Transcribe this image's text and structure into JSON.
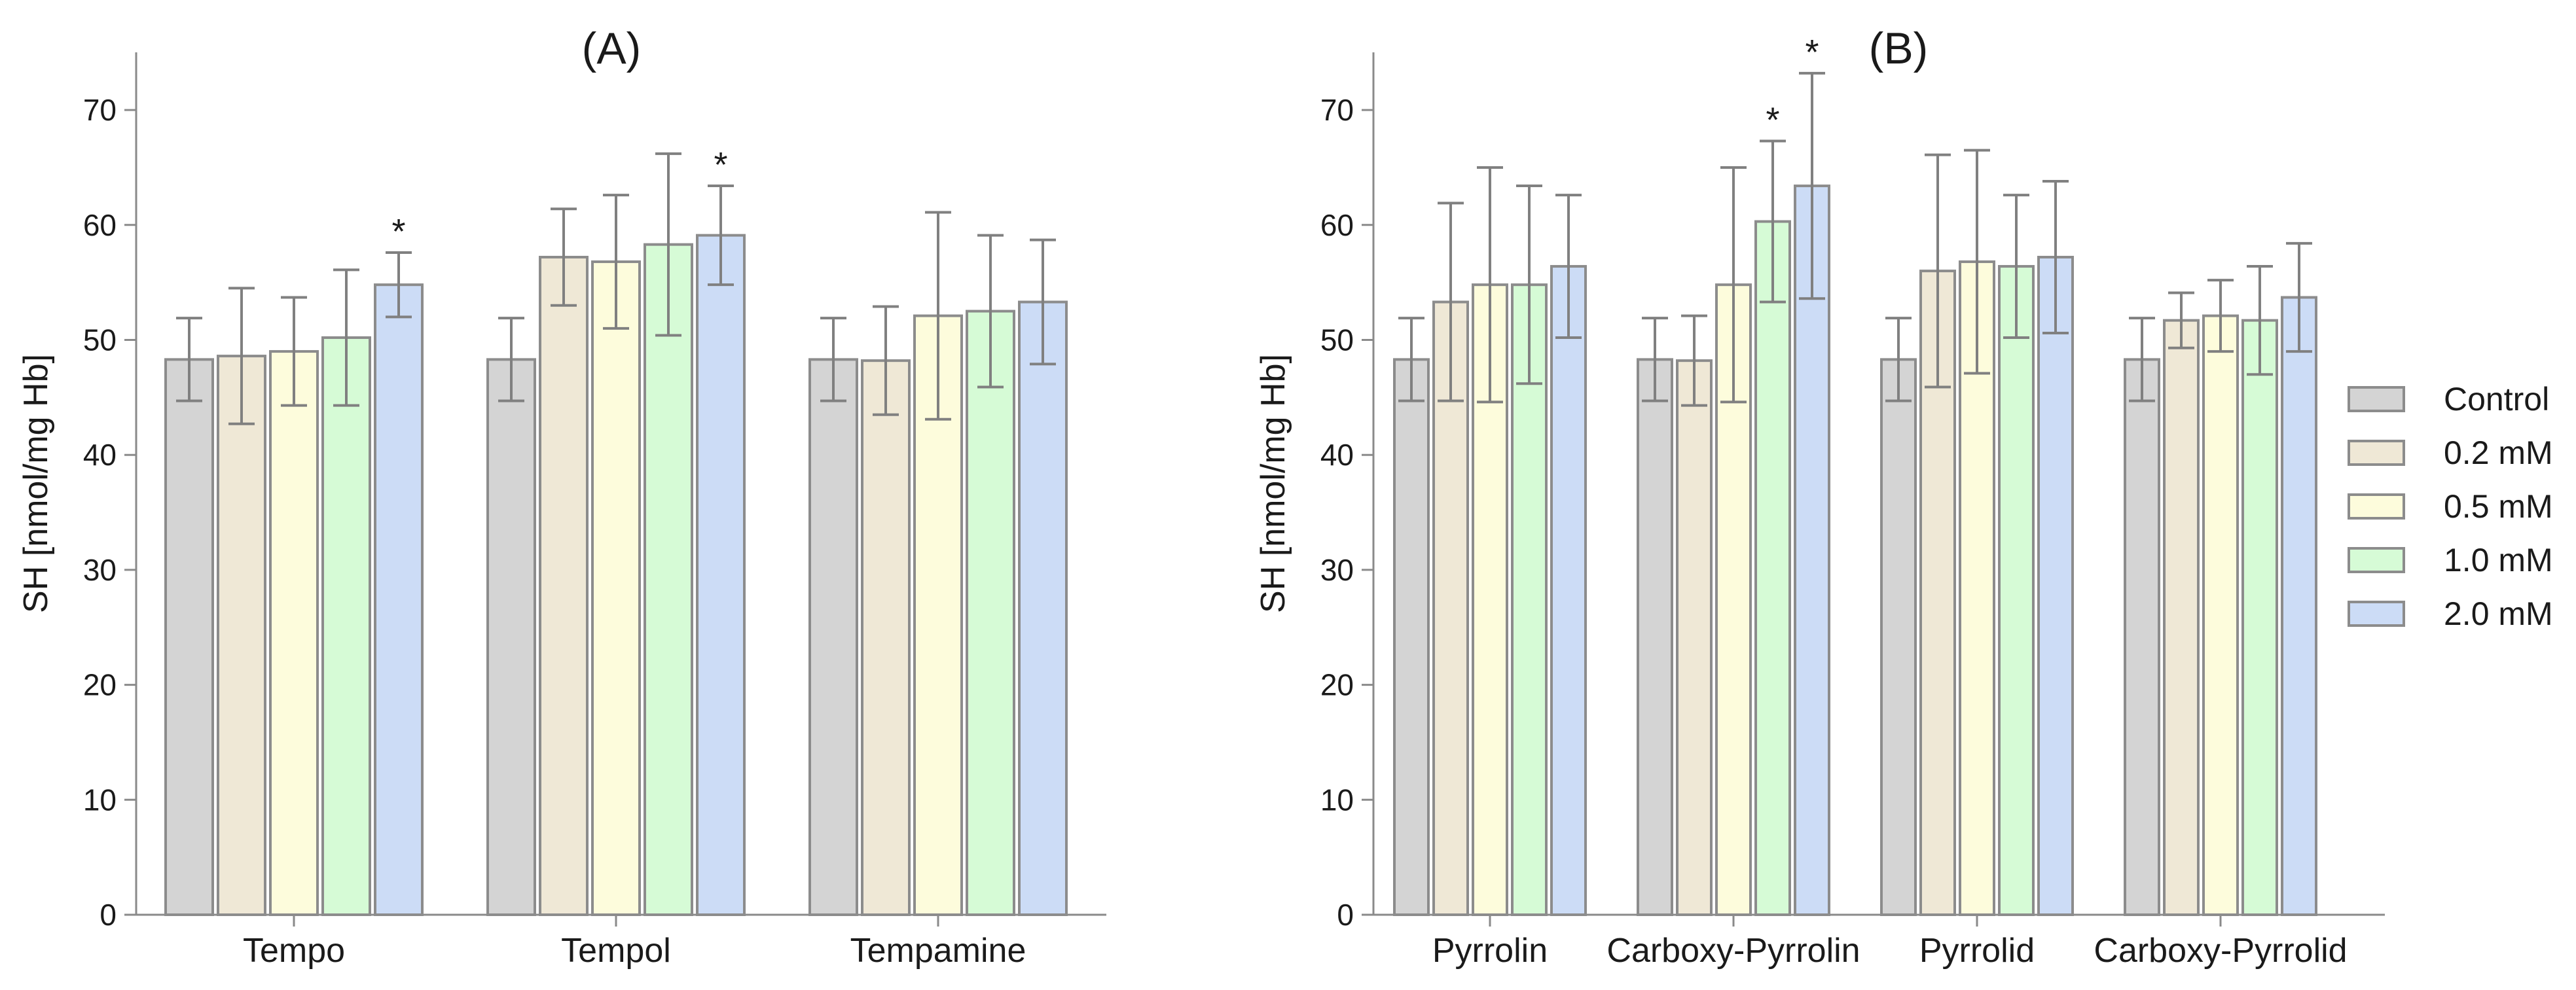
{
  "chart_data": [
    {
      "type": "bar",
      "panel": "A",
      "title": "(A)",
      "xlabel": "",
      "ylabel": "SH [nmol/mg Hb]",
      "ylim": [
        0,
        75
      ],
      "yticks": [
        "0",
        "10",
        "20",
        "30",
        "40",
        "50",
        "60",
        "70"
      ],
      "categories": [
        "Tempo",
        "Tempol",
        "Tempamine"
      ],
      "series": [
        {
          "name": "Control",
          "color": "#d4d4d4",
          "values": [
            48.3,
            48.3,
            48.3
          ],
          "errors": [
            3.6,
            3.6,
            3.6
          ],
          "significant": [
            false,
            false,
            false
          ]
        },
        {
          "name": "0.2 mM",
          "color": "#efe8d6",
          "values": [
            48.6,
            57.2,
            48.2
          ],
          "errors": [
            5.9,
            4.2,
            4.7
          ],
          "significant": [
            false,
            false,
            false
          ]
        },
        {
          "name": "0.5 mM",
          "color": "#fdfcdc",
          "values": [
            49.0,
            56.8,
            52.1
          ],
          "errors": [
            4.7,
            5.8,
            9.0
          ],
          "significant": [
            false,
            false,
            false
          ]
        },
        {
          "name": "1.0 mM",
          "color": "#d6fbd6",
          "values": [
            50.2,
            58.3,
            52.5
          ],
          "errors": [
            5.9,
            7.9,
            6.6
          ],
          "significant": [
            false,
            false,
            false
          ]
        },
        {
          "name": "2.0 mM",
          "color": "#ccdcf6",
          "values": [
            54.8,
            59.1,
            53.3
          ],
          "errors": [
            2.8,
            4.3,
            5.4
          ],
          "significant": [
            true,
            true,
            false
          ]
        }
      ]
    },
    {
      "type": "bar",
      "panel": "B",
      "title": "(B)",
      "xlabel": "",
      "ylabel": "SH [nmol/mg Hb]",
      "ylim": [
        0,
        75
      ],
      "yticks": [
        "0",
        "10",
        "20",
        "30",
        "40",
        "50",
        "60",
        "70"
      ],
      "categories": [
        "Pyrrolin",
        "Carboxy-Pyrrolin",
        "Pyrrolid",
        "Carboxy-Pyrrolid"
      ],
      "series": [
        {
          "name": "Control",
          "color": "#d4d4d4",
          "values": [
            48.3,
            48.3,
            48.3,
            48.3
          ],
          "errors": [
            3.6,
            3.6,
            3.6,
            3.6
          ],
          "significant": [
            false,
            false,
            false,
            false
          ]
        },
        {
          "name": "0.2 mM",
          "color": "#efe8d6",
          "values": [
            53.3,
            48.2,
            56.0,
            51.7
          ],
          "errors": [
            8.6,
            3.9,
            10.1,
            2.4
          ],
          "significant": [
            false,
            false,
            false,
            false
          ]
        },
        {
          "name": "0.5 mM",
          "color": "#fdfcdc",
          "values": [
            54.8,
            54.8,
            56.8,
            52.1
          ],
          "errors": [
            10.2,
            10.2,
            9.7,
            3.1
          ],
          "significant": [
            false,
            false,
            false,
            false
          ]
        },
        {
          "name": "1.0 mM",
          "color": "#d6fbd6",
          "values": [
            54.8,
            60.3,
            56.4,
            51.7
          ],
          "errors": [
            8.6,
            7.0,
            6.2,
            4.7
          ],
          "significant": [
            false,
            true,
            false,
            false
          ]
        },
        {
          "name": "2.0 mM",
          "color": "#ccdcf6",
          "values": [
            56.4,
            63.4,
            57.2,
            53.7
          ],
          "errors": [
            6.2,
            9.8,
            6.6,
            4.7
          ],
          "significant": [
            false,
            true,
            false,
            false
          ]
        }
      ]
    }
  ],
  "legend": {
    "placement": "right",
    "items": [
      "Control",
      "0.2 mM",
      "0.5 mM",
      "1.0 mM",
      "2.0 mM"
    ]
  },
  "significance_marker": "*"
}
